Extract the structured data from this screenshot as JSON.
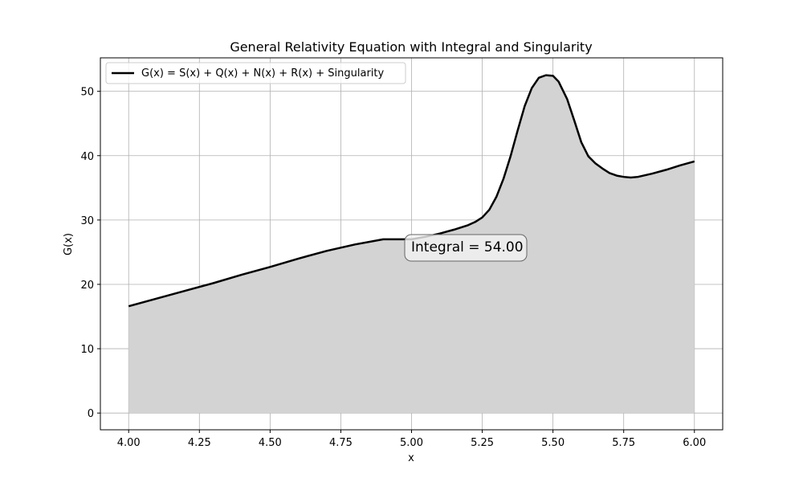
{
  "chart_data": {
    "type": "area",
    "title": "General Relativity Equation with Integral and Singularity",
    "xlabel": "x",
    "ylabel": "G(x)",
    "xlim": [
      3.9,
      6.1
    ],
    "ylim": [
      -2.6,
      55.2
    ],
    "xticks": [
      4.0,
      4.25,
      4.5,
      4.75,
      5.0,
      5.25,
      5.5,
      5.75,
      6.0
    ],
    "xtick_labels": [
      "4.00",
      "4.25",
      "4.50",
      "4.75",
      "5.00",
      "5.25",
      "5.50",
      "5.75",
      "6.00"
    ],
    "yticks": [
      0,
      10,
      20,
      30,
      40,
      50
    ],
    "ytick_labels": [
      "0",
      "10",
      "20",
      "30",
      "40",
      "50"
    ],
    "grid": true,
    "legend_position": "top-left",
    "series": [
      {
        "name": "G(x) = S(x) + Q(x) + N(x) + R(x) + Singularity",
        "color": "#000000",
        "fill_color": "#d3d3d3",
        "x": [
          4.0,
          4.1,
          4.2,
          4.3,
          4.4,
          4.5,
          4.6,
          4.7,
          4.8,
          4.9,
          5.0,
          5.05,
          5.1,
          5.15,
          5.2,
          5.225,
          5.25,
          5.275,
          5.3,
          5.325,
          5.35,
          5.375,
          5.4,
          5.425,
          5.45,
          5.475,
          5.5,
          5.52,
          5.55,
          5.575,
          5.6,
          5.625,
          5.65,
          5.675,
          5.7,
          5.725,
          5.75,
          5.775,
          5.8,
          5.85,
          5.9,
          5.95,
          6.0
        ],
        "y": [
          16.6,
          17.8,
          19.0,
          20.2,
          21.5,
          22.7,
          24.0,
          25.2,
          26.2,
          27.0,
          27.0,
          27.4,
          27.9,
          28.5,
          29.2,
          29.7,
          30.4,
          31.6,
          33.6,
          36.4,
          39.9,
          43.9,
          47.7,
          50.5,
          52.1,
          52.5,
          52.4,
          51.5,
          48.8,
          45.5,
          42.1,
          39.9,
          38.8,
          38.0,
          37.3,
          36.9,
          36.7,
          36.6,
          36.7,
          37.2,
          37.8,
          38.5,
          39.1
        ]
      }
    ],
    "annotations": [
      {
        "text": "Integral = 54.00",
        "x": 5.19,
        "y": 25.7
      }
    ]
  }
}
